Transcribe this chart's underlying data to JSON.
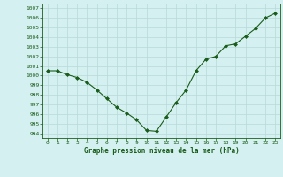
{
  "x": [
    0,
    1,
    2,
    3,
    4,
    5,
    6,
    7,
    8,
    9,
    10,
    11,
    12,
    13,
    14,
    15,
    16,
    17,
    18,
    19,
    20,
    21,
    22,
    23
  ],
  "y": [
    1000.5,
    1000.5,
    1000.1,
    999.8,
    999.3,
    998.5,
    997.6,
    996.7,
    996.1,
    995.4,
    994.3,
    994.2,
    995.7,
    997.2,
    998.5,
    1000.5,
    1001.7,
    1002.0,
    1003.1,
    1003.3,
    1004.1,
    1004.9,
    1006.0,
    1006.5
  ],
  "line_color": "#1a5c1a",
  "marker_color": "#1a5c1a",
  "bg_color": "#d4f0f0",
  "grid_color": "#b8d8d8",
  "xlabel": "Graphe pression niveau de la mer (hPa)",
  "ylim": [
    993.5,
    1007.5
  ],
  "xlim": [
    -0.5,
    23.5
  ],
  "yticks": [
    994,
    995,
    996,
    997,
    998,
    999,
    1000,
    1001,
    1002,
    1003,
    1004,
    1005,
    1006,
    1007
  ],
  "xticks": [
    0,
    1,
    2,
    3,
    4,
    5,
    6,
    7,
    8,
    9,
    10,
    11,
    12,
    13,
    14,
    15,
    16,
    17,
    18,
    19,
    20,
    21,
    22,
    23
  ]
}
